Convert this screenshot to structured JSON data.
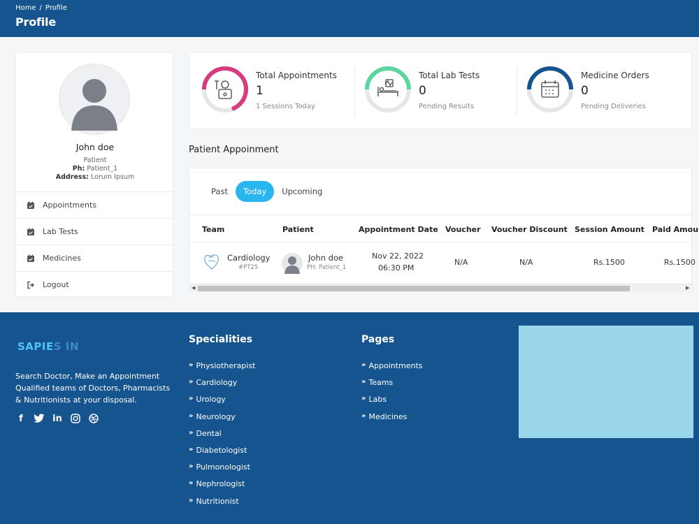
{
  "header": {
    "breadcrumb": [
      "Home",
      "/",
      "Profile"
    ],
    "title": "Profile"
  },
  "profile": {
    "name": "John doe",
    "role": "Patient",
    "phone_label": "Ph:",
    "phone": "Patient_1",
    "address_label": "Address:",
    "address": "Lorum Ipsum",
    "menu": [
      {
        "label": "Appointments",
        "icon": "calendar-check-icon"
      },
      {
        "label": "Lab Tests",
        "icon": "calendar-check-icon"
      },
      {
        "label": "Medicines",
        "icon": "calendar-check-icon"
      },
      {
        "label": "Logout",
        "icon": "logout-icon"
      }
    ]
  },
  "stats": [
    {
      "label": "Total Appointments",
      "value": "1",
      "sub": "1 Sessions Today",
      "color": "#d63c7f",
      "icon": "doctor-icon"
    },
    {
      "label": "Total Lab Tests",
      "value": "0",
      "sub": "Pending Results",
      "color": "#5cd6a0",
      "icon": "hospital-bed-icon"
    },
    {
      "label": "Medicine Orders",
      "value": "0",
      "sub": "Pending Deliveries",
      "color": "#16548f",
      "icon": "calendar-icon"
    }
  ],
  "appointments": {
    "section_title": "Patient Appoinment",
    "tabs": [
      "Past",
      "Today",
      "Upcoming"
    ],
    "active_tab": "Today",
    "columns": [
      "Team",
      "Patient",
      "Appointment Date",
      "Voucher",
      "Voucher Discount",
      "Session Amount",
      "Paid Amou"
    ],
    "rows": [
      {
        "team": "Cardiology",
        "team_code": "#PT25",
        "patient": "John doe",
        "patient_ph": "PH: Patient_1",
        "date": "Nov 22, 2022",
        "time": "06:30 PM",
        "voucher": "N/A",
        "voucher_discount": "N/A",
        "session_amount": "Rs.1500",
        "paid_amount": "Rs.1500"
      }
    ]
  },
  "footer": {
    "logo": "SAPIE",
    "logo_rest": "S IN",
    "tagline": "Search Doctor, Make an Appointment Qualified teams of Doctors, Pharmacists & Nutritionists at your disposal.",
    "socials": [
      "facebook-icon",
      "twitter-icon",
      "linkedin-icon",
      "instagram-icon",
      "dribbble-icon"
    ],
    "specialities_title": "Specialities",
    "specialities": [
      "Physiotherapist",
      "Cardiology",
      "Urology",
      "Neurology",
      "Dental",
      "Diabetologist",
      "Pulmonologist",
      "Nephrologist",
      "Nutritionist"
    ],
    "pages_title": "Pages",
    "pages": [
      "Appointments",
      "Teams",
      "Labs",
      "Medicines"
    ]
  }
}
